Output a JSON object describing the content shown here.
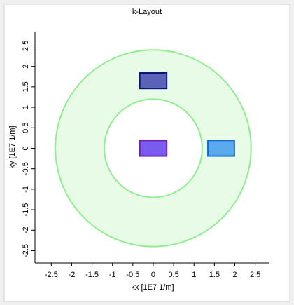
{
  "chart_data": {
    "type": "layout",
    "title": "k-Layout",
    "xlabel": "kx [1E7 1/m]",
    "ylabel": "ky [1E7 1/m]",
    "xlim": [
      -2.9,
      2.85
    ],
    "ylim": [
      -2.8,
      2.85
    ],
    "xticks": [
      -2.5,
      -2,
      -1.5,
      -1,
      -0.5,
      0,
      0.5,
      1,
      1.5,
      2,
      2.5
    ],
    "yticks": [
      -2.5,
      -2,
      -1.5,
      -1,
      -0.5,
      0,
      0.5,
      1,
      1.5,
      2,
      2.5
    ],
    "ring": {
      "center_x": 0,
      "center_y": 0,
      "inner_radius": 1.2,
      "outer_radius": 2.4,
      "color": "#90ee90"
    },
    "rectangles": [
      {
        "x0": -0.33,
        "x1": 0.33,
        "y0": 1.46,
        "y1": 1.84,
        "color": "#5a63b8",
        "edge": "#0a1a7a"
      },
      {
        "x0": -0.33,
        "x1": 0.33,
        "y0": -0.19,
        "y1": 0.19,
        "color": "#7b5cf0",
        "edge": "#6a1fb0"
      },
      {
        "x0": 1.34,
        "x1": 1.99,
        "y0": -0.19,
        "y1": 0.19,
        "color": "#5aaaf0",
        "edge": "#1a6ad0"
      }
    ]
  }
}
